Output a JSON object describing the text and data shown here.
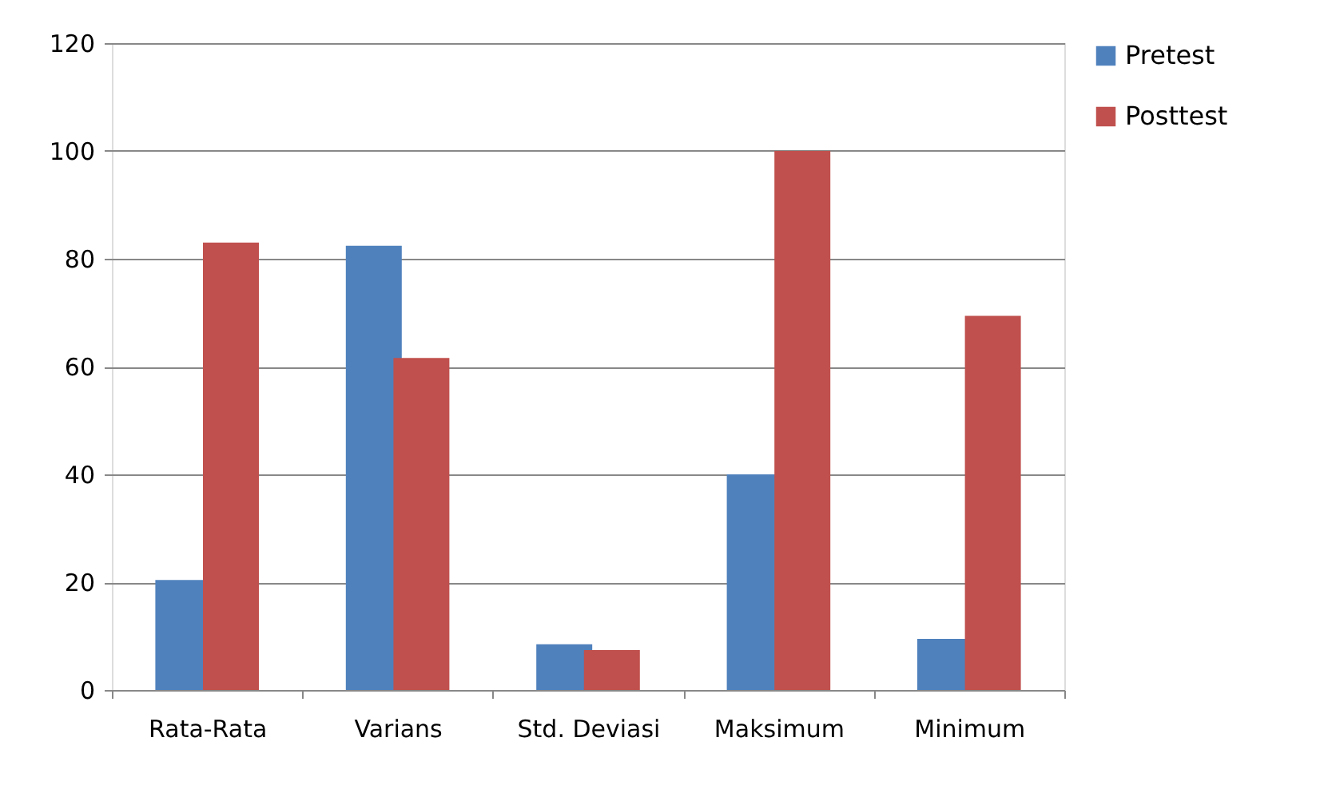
{
  "chart_data": {
    "type": "bar",
    "categories": [
      "Rata-Rata",
      "Varians",
      "Std. Deviasi",
      "Maksimum",
      "Minimum"
    ],
    "series": [
      {
        "name": "Pretest",
        "color": "#4f81bd",
        "values": [
          20.4,
          82.4,
          8.5,
          40,
          9.5
        ]
      },
      {
        "name": "Posttest",
        "color": "#c0504d",
        "values": [
          83,
          61.6,
          7.4,
          100,
          69.4
        ]
      }
    ],
    "ylim": [
      0,
      120
    ],
    "yticks": [
      0,
      20,
      40,
      60,
      80,
      100,
      120
    ],
    "grid": "y",
    "legend": "right"
  }
}
